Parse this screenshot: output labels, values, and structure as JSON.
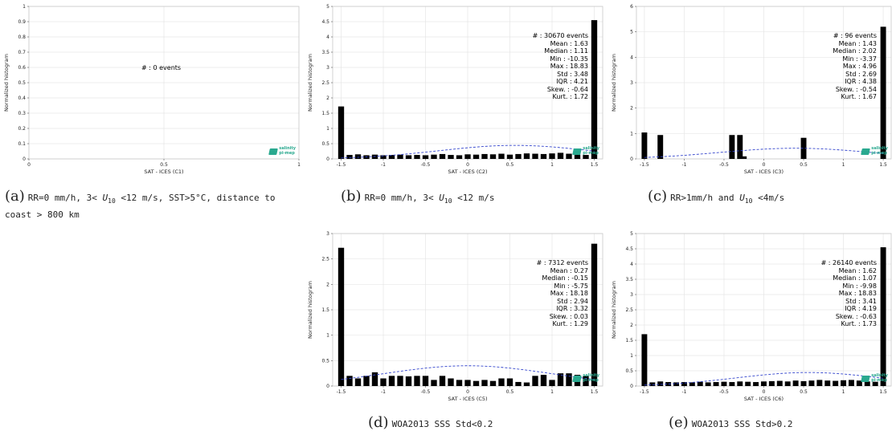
{
  "chart_data": [
    {
      "id": "c1",
      "type": "bar",
      "xlabel": "SAT - ICES (C1)",
      "ylabel": "Normalized histogram",
      "xlim": [
        0,
        1
      ],
      "ylim": [
        0,
        1
      ],
      "xticks": [
        0,
        0.5,
        1
      ],
      "yticks": [
        0,
        0.1,
        0.2,
        0.3,
        0.4,
        0.5,
        0.6,
        0.7,
        0.8,
        0.9,
        1
      ],
      "grid": true,
      "bar_centers": [],
      "values": [],
      "gauss_mean": null,
      "gauss_std": null,
      "stats_lines": [
        "# : 0 events"
      ],
      "stats_placement": "center"
    },
    {
      "id": "c2",
      "type": "bar",
      "xlabel": "SAT - ICES (C2)",
      "ylabel": "Normalized histogram",
      "xlim": [
        -1.6,
        1.6
      ],
      "ylim": [
        0,
        5
      ],
      "xticks": [
        -1.5,
        -1,
        -0.5,
        0,
        0.5,
        1,
        1.5
      ],
      "yticks": [
        0,
        0.5,
        1,
        1.5,
        2,
        2.5,
        3,
        3.5,
        4,
        4.5,
        5
      ],
      "grid": true,
      "bar_centers": [
        -1.5,
        -1.4,
        -1.3,
        -1.2,
        -1.1,
        -1.0,
        -0.9,
        -0.8,
        -0.7,
        -0.6,
        -0.5,
        -0.4,
        -0.3,
        -0.2,
        -0.1,
        0.0,
        0.1,
        0.2,
        0.3,
        0.4,
        0.5,
        0.6,
        0.7,
        0.8,
        0.9,
        1.0,
        1.1,
        1.2,
        1.3,
        1.4,
        1.5
      ],
      "values": [
        1.72,
        0.13,
        0.15,
        0.12,
        0.14,
        0.12,
        0.13,
        0.14,
        0.12,
        0.13,
        0.12,
        0.14,
        0.16,
        0.13,
        0.12,
        0.15,
        0.14,
        0.16,
        0.15,
        0.17,
        0.14,
        0.16,
        0.18,
        0.17,
        0.16,
        0.18,
        0.2,
        0.17,
        0.14,
        0.13,
        4.55
      ],
      "gauss_mean": 0.56,
      "gauss_std": 0.9,
      "stats_lines": [
        "# : 30670 events",
        "Mean : 1.63",
        "Median : 1.11",
        "Min : -10.35",
        "Max : 18.83",
        "Std : 3.48",
        "IQR : 4.21",
        "Skew. : -0.64",
        "Kurt. : 1.72"
      ],
      "stats_placement": "top-right"
    },
    {
      "id": "c3",
      "type": "bar",
      "xlabel": "SAT - ICES (C3)",
      "ylabel": "Normalized histogram",
      "xlim": [
        -1.6,
        1.6
      ],
      "ylim": [
        0,
        6
      ],
      "xticks": [
        -1.5,
        -1,
        -0.5,
        0,
        0.5,
        1,
        1.5
      ],
      "yticks": [
        0,
        1,
        2,
        3,
        4,
        5,
        6
      ],
      "grid": true,
      "bar_centers": [
        -1.5,
        -1.3,
        -0.4,
        -0.3,
        -0.25,
        0.5,
        1.5
      ],
      "values": [
        1.04,
        0.94,
        0.94,
        0.94,
        0.1,
        0.83,
        5.2
      ],
      "gauss_mean": 0.4,
      "gauss_std": 0.95,
      "stats_lines": [
        "# : 96 events",
        "Mean : 1.43",
        "Median : 2.02",
        "Min : -3.37",
        "Max : 4.96",
        "Std : 2.69",
        "IQR : 4.38",
        "Skew. : -0.54",
        "Kurt. : 1.67"
      ],
      "stats_placement": "top-right"
    },
    {
      "id": "c5",
      "type": "bar",
      "xlabel": "SAT - ICES (C5)",
      "ylabel": "Normalized histogram",
      "xlim": [
        -1.6,
        1.6
      ],
      "ylim": [
        0,
        3
      ],
      "xticks": [
        -1.5,
        -1,
        -0.5,
        0,
        0.5,
        1,
        1.5
      ],
      "yticks": [
        0,
        0.5,
        1,
        1.5,
        2,
        2.5,
        3
      ],
      "grid": true,
      "bar_centers": [
        -1.5,
        -1.4,
        -1.3,
        -1.2,
        -1.1,
        -1.0,
        -0.9,
        -0.8,
        -0.7,
        -0.6,
        -0.5,
        -0.4,
        -0.3,
        -0.2,
        -0.1,
        0.0,
        0.1,
        0.2,
        0.3,
        0.4,
        0.5,
        0.6,
        0.7,
        0.8,
        0.9,
        1.0,
        1.1,
        1.2,
        1.3,
        1.4,
        1.5
      ],
      "values": [
        2.72,
        0.2,
        0.15,
        0.2,
        0.27,
        0.15,
        0.2,
        0.2,
        0.19,
        0.2,
        0.2,
        0.12,
        0.2,
        0.15,
        0.12,
        0.12,
        0.1,
        0.12,
        0.1,
        0.15,
        0.15,
        0.08,
        0.07,
        0.2,
        0.22,
        0.12,
        0.25,
        0.25,
        0.22,
        0.2,
        2.8
      ],
      "gauss_mean": 0.0,
      "gauss_std": 1.0,
      "stats_lines": [
        "# : 7312 events",
        "Mean : 0.27",
        "Median : -0.15",
        "Min : -5.75",
        "Max : 18.18",
        "Std : 2.94",
        "IQR : 3.32",
        "Skew. : 0.03",
        "Kurt. : 1.29"
      ],
      "stats_placement": "top-right"
    },
    {
      "id": "c6",
      "type": "bar",
      "xlabel": "SAT - ICES (C6)",
      "ylabel": "Normalized histogram",
      "xlim": [
        -1.6,
        1.6
      ],
      "ylim": [
        0,
        5
      ],
      "xticks": [
        -1.5,
        -1,
        -0.5,
        0,
        0.5,
        1,
        1.5
      ],
      "yticks": [
        0,
        0.5,
        1,
        1.5,
        2,
        2.5,
        3,
        3.5,
        4,
        4.5,
        5
      ],
      "grid": true,
      "bar_centers": [
        -1.5,
        -1.4,
        -1.3,
        -1.2,
        -1.1,
        -1.0,
        -0.9,
        -0.8,
        -0.7,
        -0.6,
        -0.5,
        -0.4,
        -0.3,
        -0.2,
        -0.1,
        0.0,
        0.1,
        0.2,
        0.3,
        0.4,
        0.5,
        0.6,
        0.7,
        0.8,
        0.9,
        1.0,
        1.1,
        1.2,
        1.3,
        1.4,
        1.5
      ],
      "values": [
        1.7,
        0.12,
        0.15,
        0.13,
        0.12,
        0.13,
        0.12,
        0.14,
        0.12,
        0.13,
        0.14,
        0.13,
        0.15,
        0.14,
        0.13,
        0.15,
        0.16,
        0.17,
        0.15,
        0.18,
        0.16,
        0.18,
        0.2,
        0.18,
        0.17,
        0.19,
        0.2,
        0.18,
        0.15,
        0.14,
        4.55
      ],
      "gauss_mean": 0.56,
      "gauss_std": 0.9,
      "stats_lines": [
        "# : 26140 events",
        "Mean : 1.62",
        "Median : 1.07",
        "Min : -9.98",
        "Max : 18.83",
        "Std : 3.41",
        "IQR : 4.19",
        "Skew. : -0.63",
        "Kurt. : 1.73"
      ],
      "stats_placement": "top-right"
    }
  ],
  "captions": [
    {
      "letter": "(a)",
      "text": "RR=0 mm/h, 3< U10 <12 m/s, SST>5°C, distance to coast > 800 km"
    },
    {
      "letter": "(b)",
      "text": "RR=0 mm/h, 3< U10 <12 m/s"
    },
    {
      "letter": "(c)",
      "text": "RR>1mm/h and U10 <4m/s"
    },
    {
      "letter": "(d)",
      "text": "WOA2013 SSS Std<0.2"
    },
    {
      "letter": "(e)",
      "text": "WOA2013 SSS Std>0.2"
    }
  ],
  "logo": {
    "line1": "salinity",
    "line2": "pi-mep"
  },
  "colors": {
    "bar": "#000000",
    "gauss": "#3344cc",
    "grid": "#e6e6e6",
    "logo": "#2aa98f"
  }
}
